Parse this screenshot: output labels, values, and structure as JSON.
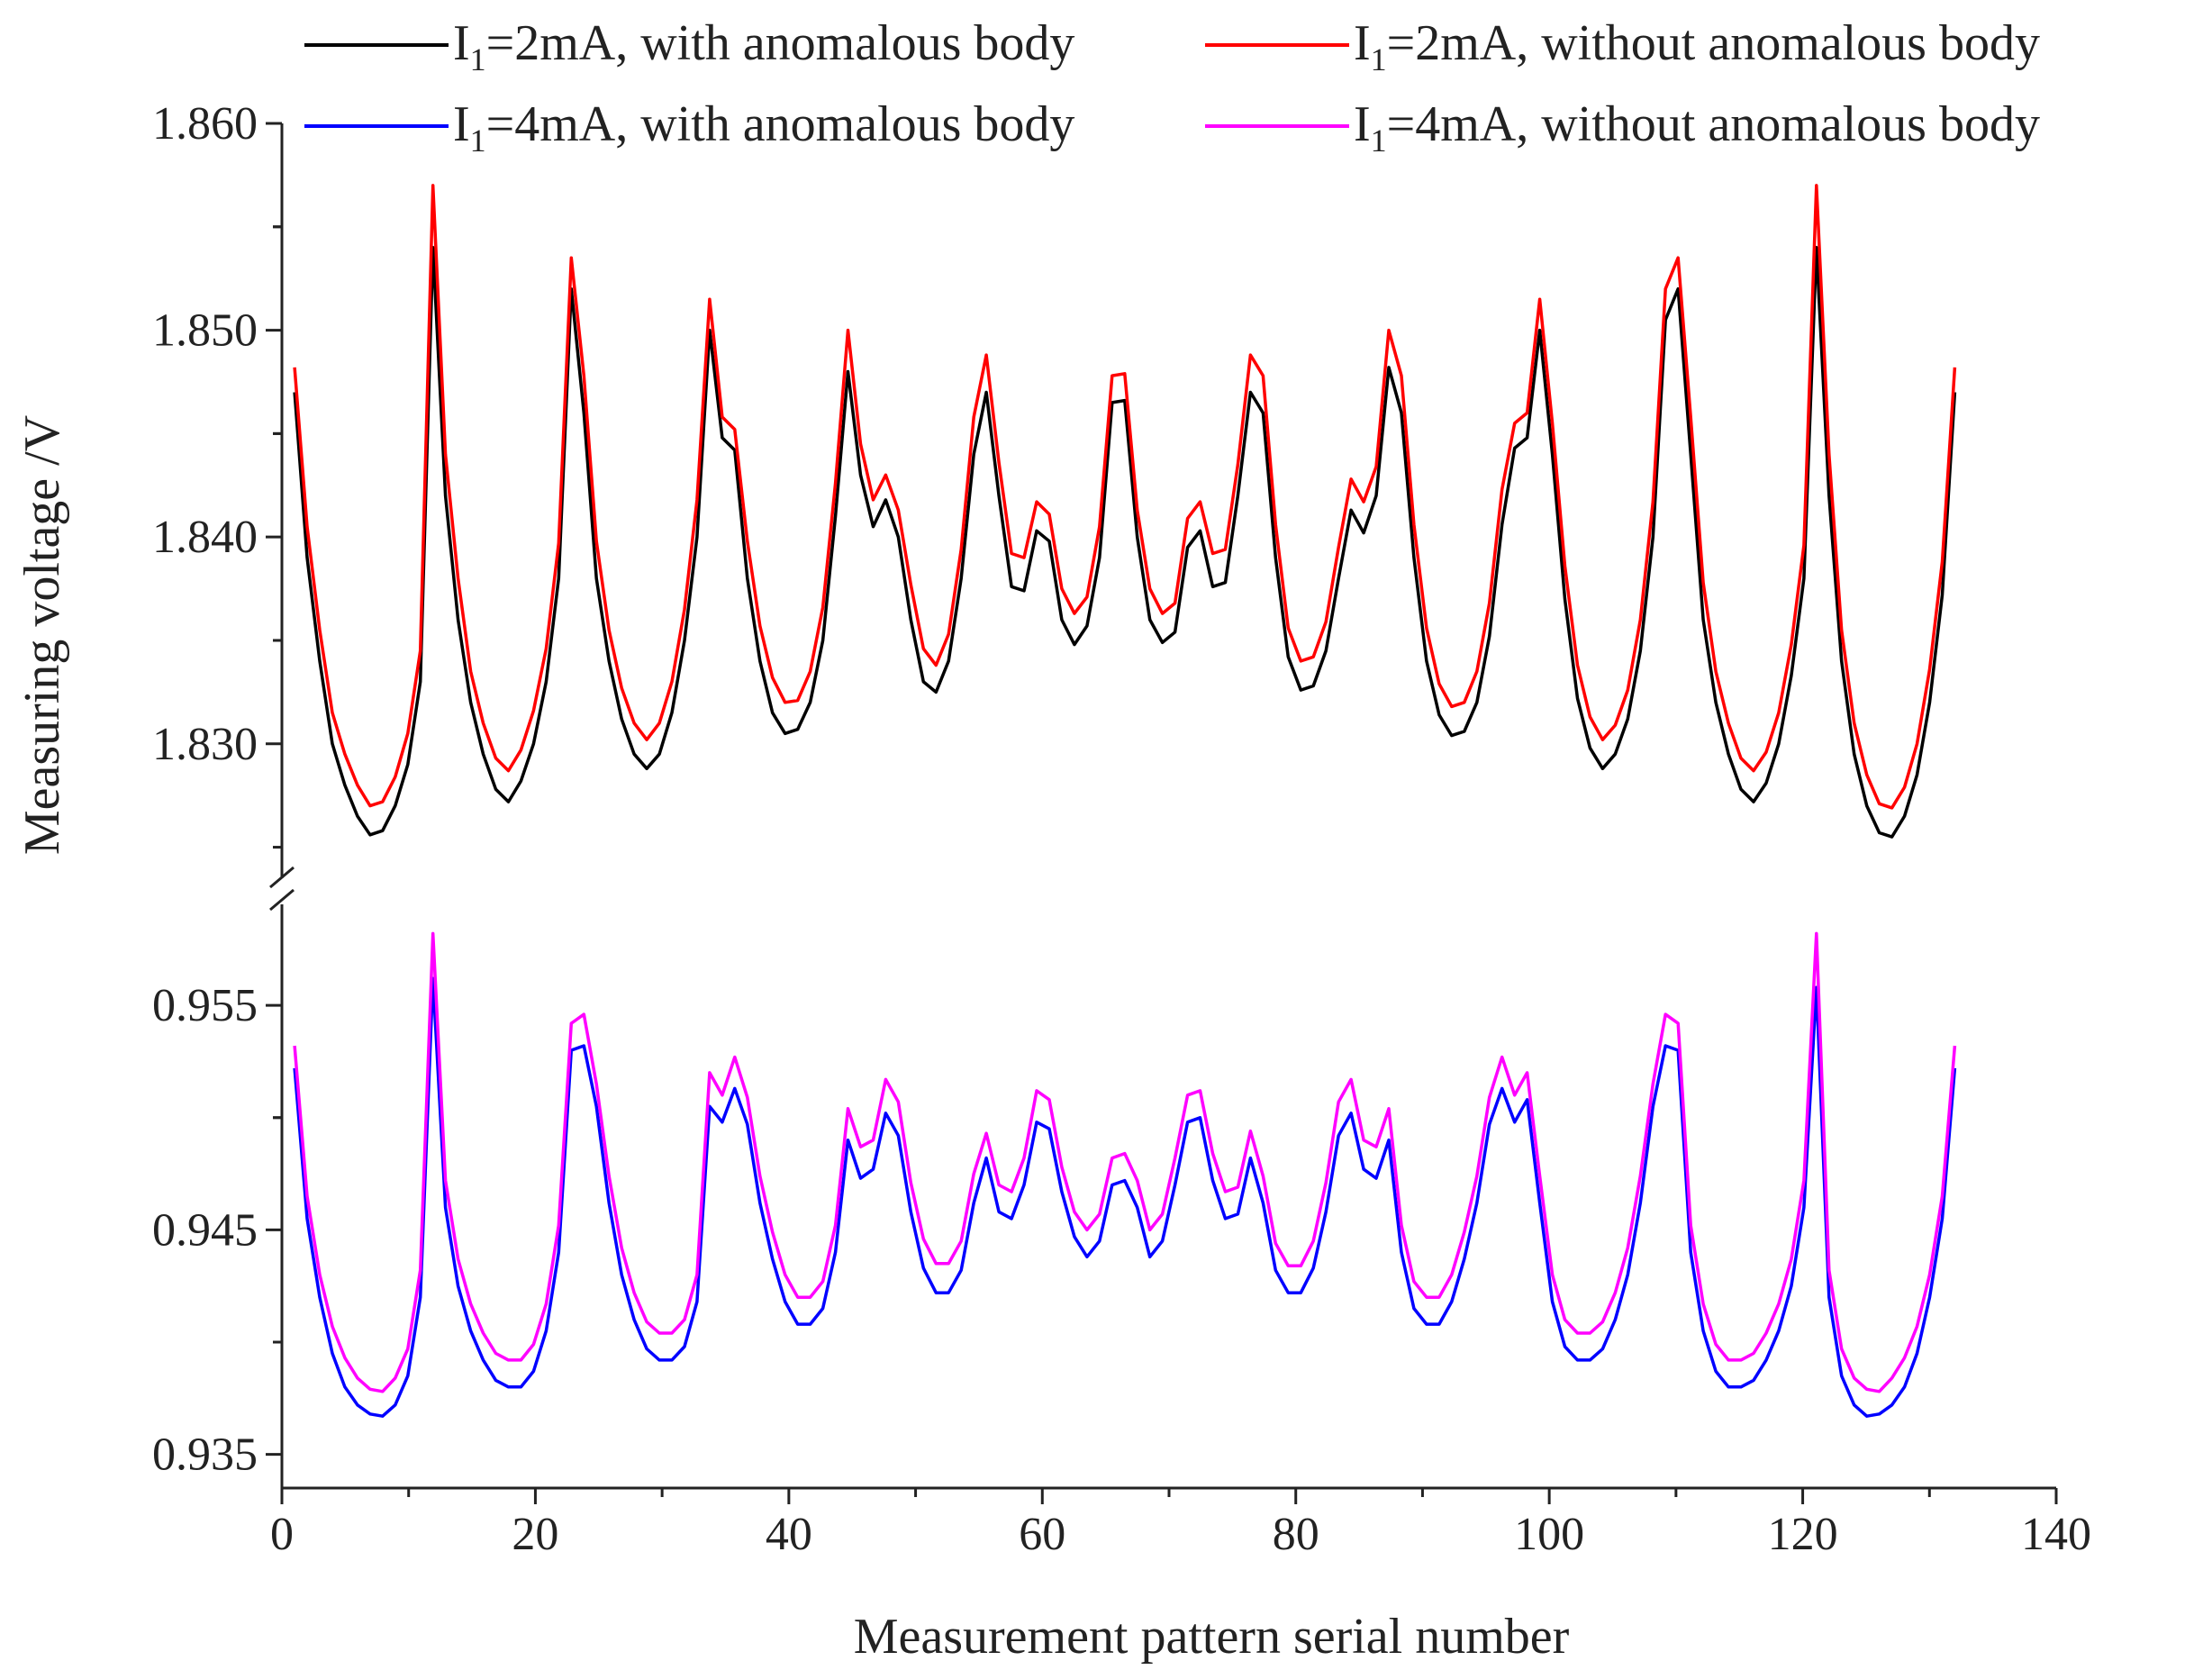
{
  "chart_data": {
    "type": "line",
    "broken_y_axis": true,
    "xlabel": "Measurement pattern serial number",
    "ylabel": "Measuring voltage /V",
    "xlim": [
      0,
      140
    ],
    "x_ticks": [
      "0",
      "20",
      "40",
      "60",
      "80",
      "100",
      "120",
      "140"
    ],
    "y_ticks_upper": [
      "1.830",
      "1.840",
      "1.850",
      "1.860"
    ],
    "y_ticks_lower": [
      "0.935",
      "0.945",
      "0.955"
    ],
    "ylim_upper": [
      1.8235,
      1.86
    ],
    "ylim_lower": [
      0.9335,
      0.9595
    ],
    "legend": [
      {
        "sym": "I",
        "sub": "1",
        "text": "=2mA, with anomalous body",
        "color": "#000000"
      },
      {
        "sym": "I",
        "sub": "1",
        "text": "=2mA, without anomalous body",
        "color": "#ff0000"
      },
      {
        "sym": "I",
        "sub": "1",
        "text": "=4mA, with anomalous body",
        "color": "#0000ff"
      },
      {
        "sym": "I",
        "sub": "1",
        "text": "=4mA, without anomalous body",
        "color": "#ff00ff"
      }
    ],
    "series": [
      {
        "name": "I1=2mA, with anomalous body",
        "panel": "upper",
        "color": "#000000",
        "x_start": 1,
        "x_end": 132,
        "values": [
          1.847,
          1.839,
          1.834,
          1.83,
          1.828,
          1.8265,
          1.8256,
          1.8258,
          1.827,
          1.829,
          1.833,
          1.854,
          1.842,
          1.836,
          1.832,
          1.8295,
          1.8278,
          1.8272,
          1.8282,
          1.83,
          1.833,
          1.838,
          1.852,
          1.846,
          1.838,
          1.834,
          1.8312,
          1.8295,
          1.8288,
          1.8295,
          1.8315,
          1.835,
          1.84,
          1.85,
          1.8448,
          1.8442,
          1.838,
          1.834,
          1.8315,
          1.8305,
          1.8307,
          1.832,
          1.835,
          1.841,
          1.848,
          1.843,
          1.8405,
          1.8418,
          1.84,
          1.836,
          1.833,
          1.8325,
          1.834,
          1.838,
          1.844,
          1.847,
          1.842,
          1.8376,
          1.8374,
          1.8403,
          1.8398,
          1.836,
          1.8348,
          1.8357,
          1.839,
          1.8465,
          1.8466,
          1.84,
          1.836,
          1.8349,
          1.8354,
          1.8395,
          1.8403,
          1.8376,
          1.8378,
          1.842,
          1.847,
          1.846,
          1.839,
          1.8342,
          1.8326,
          1.8328,
          1.8345,
          1.838,
          1.8413,
          1.8402,
          1.842,
          1.8482,
          1.846,
          1.839,
          1.834,
          1.8314,
          1.8304,
          1.8306,
          1.832,
          1.8352,
          1.8406,
          1.8443,
          1.8448,
          1.85,
          1.844,
          1.837,
          1.8322,
          1.8298,
          1.8288,
          1.8295,
          1.8312,
          1.8345,
          1.84,
          1.8505,
          1.852,
          1.844,
          1.836,
          1.832,
          1.8295,
          1.8278,
          1.8272,
          1.8281,
          1.83,
          1.8333,
          1.838,
          1.854,
          1.842,
          1.834,
          1.8295,
          1.827,
          1.8257,
          1.8255,
          1.8265,
          1.8285,
          1.832,
          1.8372,
          1.847
        ]
      },
      {
        "name": "I1=2mA, without anomalous body",
        "panel": "upper",
        "color": "#ff0000",
        "x_start": 1,
        "x_end": 132,
        "values": [
          1.8482,
          1.8405,
          1.8355,
          1.8315,
          1.8295,
          1.828,
          1.827,
          1.8272,
          1.8284,
          1.8305,
          1.8345,
          1.857,
          1.844,
          1.838,
          1.8335,
          1.831,
          1.8293,
          1.8287,
          1.8297,
          1.8316,
          1.8346,
          1.8397,
          1.8535,
          1.8478,
          1.8398,
          1.8355,
          1.8327,
          1.831,
          1.8302,
          1.831,
          1.833,
          1.8365,
          1.8418,
          1.8515,
          1.8458,
          1.8452,
          1.8398,
          1.8357,
          1.8332,
          1.832,
          1.8321,
          1.8335,
          1.8366,
          1.8426,
          1.85,
          1.8445,
          1.8418,
          1.843,
          1.8413,
          1.8377,
          1.8346,
          1.8338,
          1.8353,
          1.8394,
          1.8458,
          1.8488,
          1.8436,
          1.8392,
          1.839,
          1.8417,
          1.8411,
          1.8375,
          1.8363,
          1.8371,
          1.8405,
          1.8478,
          1.8479,
          1.8413,
          1.8375,
          1.8363,
          1.8368,
          1.8409,
          1.8417,
          1.8392,
          1.8394,
          1.8435,
          1.8488,
          1.8478,
          1.8406,
          1.8356,
          1.834,
          1.8342,
          1.8359,
          1.8395,
          1.8428,
          1.8417,
          1.8434,
          1.85,
          1.8478,
          1.8406,
          1.8356,
          1.8329,
          1.8318,
          1.832,
          1.8335,
          1.8368,
          1.8423,
          1.8455,
          1.846,
          1.8515,
          1.8455,
          1.8386,
          1.8338,
          1.8313,
          1.8302,
          1.8309,
          1.8326,
          1.836,
          1.8417,
          1.852,
          1.8535,
          1.8458,
          1.8378,
          1.8335,
          1.831,
          1.8293,
          1.8287,
          1.8296,
          1.8315,
          1.8348,
          1.8396,
          1.857,
          1.844,
          1.8355,
          1.831,
          1.8285,
          1.8271,
          1.8269,
          1.8279,
          1.83,
          1.8336,
          1.8388,
          1.8482
        ]
      },
      {
        "name": "I1=4mA, with anomalous body",
        "panel": "lower",
        "color": "#0000ff",
        "x_start": 1,
        "x_end": 132,
        "values": [
          0.9522,
          0.9455,
          0.942,
          0.9395,
          0.938,
          0.9372,
          0.9368,
          0.9367,
          0.9372,
          0.9385,
          0.942,
          0.9562,
          0.946,
          0.9425,
          0.9405,
          0.9392,
          0.9383,
          0.938,
          0.938,
          0.9387,
          0.9405,
          0.944,
          0.953,
          0.9532,
          0.9505,
          0.9462,
          0.943,
          0.941,
          0.9397,
          0.9392,
          0.9392,
          0.9398,
          0.9418,
          0.9505,
          0.9498,
          0.9513,
          0.9497,
          0.9462,
          0.9437,
          0.9418,
          0.9408,
          0.9408,
          0.9415,
          0.944,
          0.949,
          0.9473,
          0.9477,
          0.9502,
          0.9492,
          0.9458,
          0.9433,
          0.9422,
          0.9422,
          0.9432,
          0.9462,
          0.9482,
          0.9458,
          0.9455,
          0.947,
          0.9498,
          0.9495,
          0.9467,
          0.9447,
          0.9438,
          0.9445,
          0.947,
          0.9472,
          0.946,
          0.9438,
          0.9445,
          0.947,
          0.9498,
          0.95,
          0.9472,
          0.9455,
          0.9457,
          0.9482,
          0.9462,
          0.9432,
          0.9422,
          0.9422,
          0.9433,
          0.9458,
          0.9492,
          0.9502,
          0.9477,
          0.9473,
          0.949,
          0.944,
          0.9415,
          0.9408,
          0.9408,
          0.9418,
          0.9437,
          0.9462,
          0.9497,
          0.9513,
          0.9498,
          0.9508,
          0.9462,
          0.9418,
          0.9398,
          0.9392,
          0.9392,
          0.9397,
          0.941,
          0.943,
          0.9462,
          0.9505,
          0.9532,
          0.953,
          0.944,
          0.9405,
          0.9387,
          0.938,
          0.938,
          0.9383,
          0.9392,
          0.9405,
          0.9425,
          0.946,
          0.9558,
          0.942,
          0.9385,
          0.9372,
          0.9367,
          0.9368,
          0.9372,
          0.938,
          0.9395,
          0.942,
          0.9455,
          0.9522
        ]
      },
      {
        "name": "I1=4mA, without anomalous body",
        "panel": "lower",
        "color": "#ff00ff",
        "x_start": 1,
        "x_end": 132,
        "values": [
          0.9532,
          0.9465,
          0.943,
          0.9407,
          0.9393,
          0.9384,
          0.9379,
          0.9378,
          0.9384,
          0.9397,
          0.9432,
          0.9582,
          0.9472,
          0.9437,
          0.9417,
          0.9404,
          0.9395,
          0.9392,
          0.9392,
          0.9399,
          0.9417,
          0.9452,
          0.9542,
          0.9546,
          0.9515,
          0.9474,
          0.9442,
          0.9422,
          0.9409,
          0.9404,
          0.9404,
          0.941,
          0.943,
          0.952,
          0.951,
          0.9527,
          0.9509,
          0.9474,
          0.9449,
          0.943,
          0.942,
          0.942,
          0.9427,
          0.9452,
          0.9504,
          0.9487,
          0.949,
          0.9517,
          0.9507,
          0.9471,
          0.9446,
          0.9435,
          0.9435,
          0.9445,
          0.9475,
          0.9493,
          0.947,
          0.9467,
          0.9482,
          0.9512,
          0.9508,
          0.9478,
          0.9458,
          0.945,
          0.9457,
          0.9482,
          0.9484,
          0.9472,
          0.945,
          0.9457,
          0.9482,
          0.951,
          0.9512,
          0.9484,
          0.9467,
          0.9469,
          0.9494,
          0.9474,
          0.9444,
          0.9434,
          0.9434,
          0.9445,
          0.9471,
          0.9507,
          0.9517,
          0.949,
          0.9487,
          0.9504,
          0.9452,
          0.9427,
          0.942,
          0.942,
          0.943,
          0.9449,
          0.9474,
          0.9509,
          0.9527,
          0.951,
          0.952,
          0.9474,
          0.943,
          0.941,
          0.9404,
          0.9404,
          0.9409,
          0.9422,
          0.9442,
          0.9474,
          0.9515,
          0.9546,
          0.9542,
          0.9452,
          0.9417,
          0.9399,
          0.9392,
          0.9392,
          0.9395,
          0.9404,
          0.9417,
          0.9437,
          0.9472,
          0.9582,
          0.9432,
          0.9397,
          0.9384,
          0.9379,
          0.9378,
          0.9384,
          0.9393,
          0.9407,
          0.943,
          0.9465,
          0.9532
        ]
      }
    ]
  }
}
